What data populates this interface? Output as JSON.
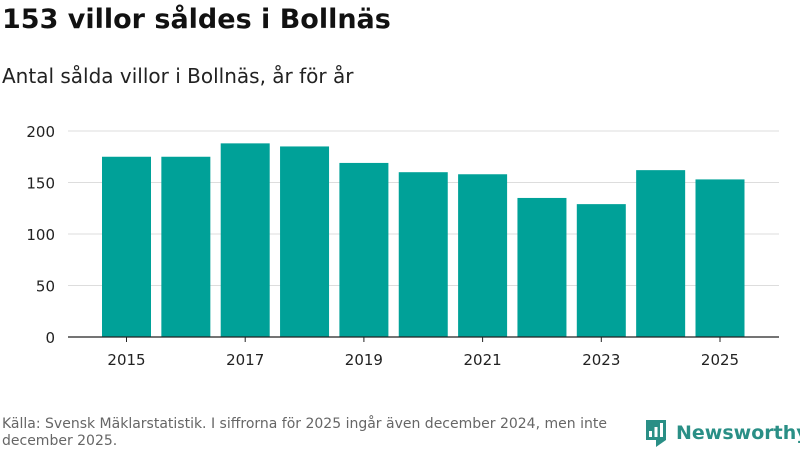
{
  "header": {
    "title": "153 villor såldes i Bollnäs",
    "subtitle": "Antal sålda villor i Bollnäs, år för år"
  },
  "chart_data": {
    "type": "bar",
    "categories": [
      "2015",
      "2016",
      "2017",
      "2018",
      "2019",
      "2020",
      "2021",
      "2022",
      "2023",
      "2024",
      "2025"
    ],
    "values": [
      175,
      175,
      188,
      185,
      169,
      160,
      158,
      135,
      129,
      162,
      153
    ],
    "tick_labels_x": [
      "2015",
      "2017",
      "2019",
      "2021",
      "2023",
      "2025"
    ],
    "yticks": [
      0,
      50,
      100,
      150,
      200
    ],
    "ylim": [
      0,
      200
    ],
    "title": "153 villor såldes i Bollnäs",
    "xlabel": "",
    "ylabel": "",
    "grid": true,
    "bar_color": "#00a198"
  },
  "footer": {
    "note": "Källa: Svensk Mäklarstatistik. I siffrorna för 2025 ingår även december 2024, men inte december 2025.",
    "brand_name": "Newsworthy",
    "brand_icon": "newsworthy-logo-icon",
    "brand_color": "#2a8f86"
  }
}
